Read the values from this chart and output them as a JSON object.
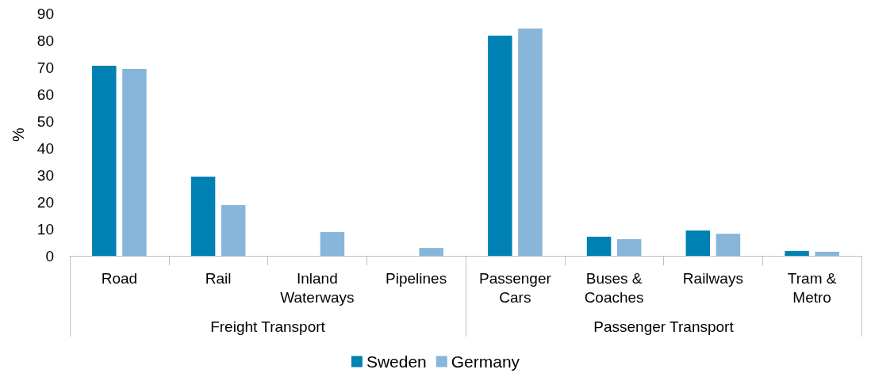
{
  "chart_data": {
    "type": "bar",
    "ylabel": "%",
    "categories": [
      "Road",
      "Rail",
      "Inland\nWaterways",
      "Pipelines",
      "Passenger\nCars",
      "Buses &\nCoaches",
      "Railways",
      "Tram &\nMetro"
    ],
    "series": [
      {
        "name": "Sweden",
        "color": "#0081b3",
        "values": [
          70.6,
          29.4,
          0,
          0,
          81.8,
          7.1,
          9.4,
          1.8
        ]
      },
      {
        "name": "Germany",
        "color": "#87b6da",
        "values": [
          69.4,
          18.8,
          8.8,
          2.9,
          84.4,
          6.2,
          8.2,
          1.5
        ]
      }
    ],
    "annotations": [
      "Freight Transport",
      "Passenger Transport"
    ],
    "ylim": [
      0,
      90
    ],
    "yticks": [
      0,
      10,
      20,
      30,
      40,
      50,
      60,
      70,
      80,
      90
    ],
    "grid": false,
    "legend": "bottom"
  }
}
